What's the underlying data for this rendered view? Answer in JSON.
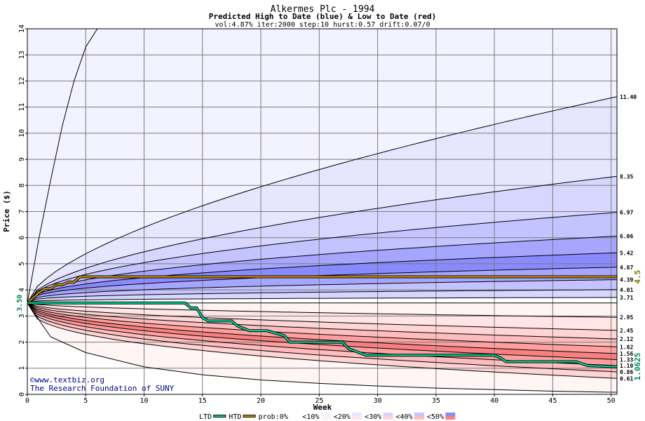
{
  "chart_data": {
    "type": "area",
    "title": "Alkermes Plc - 1994",
    "subtitle": "Predicted High to Date (blue) &  Low to Date (red)",
    "params": "vol:4.87% iter:2000 step:10 hurst:0.57 drift:0.07/0",
    "xlabel": "Week",
    "ylabel": "Price ($)",
    "xlim": [
      0,
      50.5
    ],
    "ylim": [
      0,
      14
    ],
    "xticks": [
      0,
      5,
      10,
      15,
      20,
      25,
      30,
      35,
      40,
      45,
      50
    ],
    "yticks": [
      0,
      1,
      2,
      3,
      4,
      5,
      6,
      7,
      8,
      9,
      10,
      11,
      12,
      13,
      14
    ],
    "grid": true,
    "start_price": 3.5,
    "start_label": "3.50",
    "high_to_date_final": 4.5,
    "high_label": "4.5",
    "low_to_date_final": 1.0625,
    "low_label": "1.0625",
    "high_quantile_labels": [
      "11.40",
      "8.35",
      "6.97",
      "6.06",
      "5.42",
      "4.87",
      "4.39",
      "4.01",
      "3.71"
    ],
    "high_quantile_values": [
      11.4,
      8.35,
      6.97,
      6.06,
      5.42,
      4.87,
      4.39,
      4.01,
      3.71
    ],
    "low_quantile_labels": [
      "2.95",
      "2.45",
      "2.12",
      "1.82",
      "1.56",
      "1.33",
      "1.10",
      "0.86",
      "0.61"
    ],
    "low_quantile_values": [
      2.95,
      2.45,
      2.12,
      1.82,
      1.56,
      1.33,
      1.1,
      0.86,
      0.61
    ],
    "outer_high_curve": {
      "x": [
        0,
        1,
        2,
        3,
        4,
        5,
        6
      ],
      "y": [
        3.5,
        6.0,
        8.2,
        10.3,
        12.0,
        13.3,
        14.0
      ]
    },
    "outer_low_curve": {
      "x": [
        0,
        2,
        5,
        10,
        15,
        20,
        25,
        30,
        35,
        40,
        45,
        50
      ],
      "y": [
        3.5,
        2.2,
        1.6,
        1.05,
        0.75,
        0.55,
        0.42,
        0.32,
        0.24,
        0.18,
        0.12,
        0.08
      ]
    },
    "high_to_date_series": {
      "name": "HTD",
      "x": [
        0,
        1,
        1.5,
        2,
        2.5,
        3,
        3.5,
        4,
        4.5,
        50.5
      ],
      "y": [
        3.5,
        3.9,
        4.05,
        4.05,
        4.2,
        4.2,
        4.3,
        4.3,
        4.5,
        4.5
      ]
    },
    "low_to_date_series": {
      "name": "LTD",
      "x": [
        0,
        13.5,
        14,
        14.5,
        15,
        15.5,
        17.5,
        18,
        19,
        20.5,
        22,
        22.5,
        27,
        27.5,
        29,
        30,
        40,
        40.5,
        41,
        47,
        48,
        50.5
      ],
      "y": [
        3.5,
        3.5,
        3.31,
        3.31,
        2.94,
        2.81,
        2.81,
        2.62,
        2.44,
        2.44,
        2.25,
        2.0,
        2.0,
        1.75,
        1.5,
        1.5,
        1.5,
        1.4,
        1.25,
        1.25,
        1.1,
        1.06
      ]
    },
    "legend_items": [
      "LTD",
      "HTD",
      "prob:0%",
      "<10%",
      "<20%",
      "<30%",
      "<40%",
      "<50%"
    ],
    "legend_position": "bottom",
    "band_colors": {
      "blue": [
        "#f3f2ff",
        "#e6e6ff",
        "#d6d6ff",
        "#c3c3ff",
        "#a6a6ff",
        "#8a8aff"
      ],
      "red": [
        "#fff3f3",
        "#ffe5e5",
        "#ffd4d4",
        "#ffbcbc",
        "#ff9f9f",
        "#f88080"
      ],
      "ltd": "#00e0a0",
      "htd": "#d89800",
      "accent_green": "#008a5a",
      "accent_brown": "#8a6a00"
    },
    "credit": [
      "©www.textbiz.org",
      "The Research Foundation of SUNY"
    ]
  }
}
